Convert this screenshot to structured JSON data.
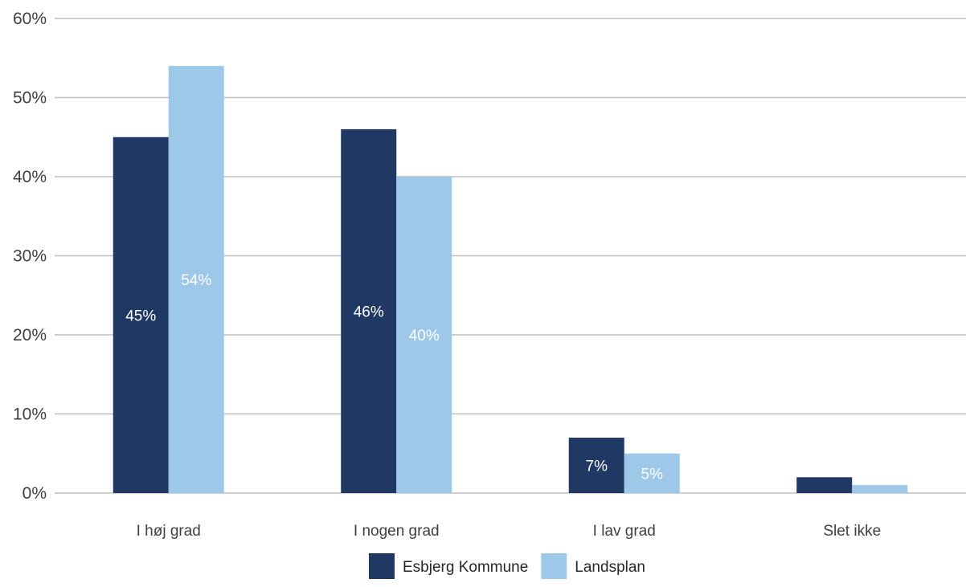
{
  "chart_data": {
    "type": "bar",
    "categories": [
      "I høj grad",
      "I nogen grad",
      "I lav grad",
      "Slet ikke"
    ],
    "series": [
      {
        "name": "Esbjerg Kommune",
        "color": "#1F3864",
        "label_color": "#ffffff",
        "values": [
          45,
          46,
          7,
          2
        ],
        "labels": [
          "45%",
          "46%",
          "7%",
          ""
        ]
      },
      {
        "name": "Landsplan",
        "color": "#9DC8E8",
        "label_color": "#ffffff",
        "values": [
          54,
          40,
          5,
          1
        ],
        "labels": [
          "54%",
          "40%",
          "5%",
          ""
        ]
      }
    ],
    "yticks": [
      "0%",
      "10%",
      "20%",
      "30%",
      "40%",
      "50%",
      "60%"
    ],
    "ylim": [
      0,
      60
    ],
    "grid": true,
    "legend": "bottom-center",
    "gridline_color": "#BFBFBF"
  }
}
